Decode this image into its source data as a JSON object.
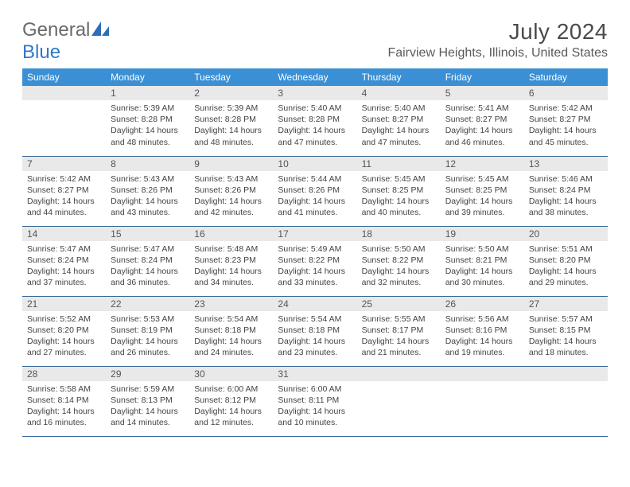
{
  "logo": {
    "word1": "General",
    "word2": "Blue"
  },
  "title": "July 2024",
  "location": "Fairview Heights, Illinois, United States",
  "colors": {
    "header_bg": "#3b8fd4",
    "header_fg": "#ffffff",
    "daynum_bg": "#e9e9e9",
    "row_border": "#3a6a9a",
    "logo_gray": "#6a6a6a",
    "logo_blue": "#3178c6"
  },
  "weekdays": [
    "Sunday",
    "Monday",
    "Tuesday",
    "Wednesday",
    "Thursday",
    "Friday",
    "Saturday"
  ],
  "weeks": [
    [
      {
        "n": "",
        "sr": "",
        "ss": "",
        "d1": "",
        "d2": ""
      },
      {
        "n": "1",
        "sr": "Sunrise: 5:39 AM",
        "ss": "Sunset: 8:28 PM",
        "d1": "Daylight: 14 hours",
        "d2": "and 48 minutes."
      },
      {
        "n": "2",
        "sr": "Sunrise: 5:39 AM",
        "ss": "Sunset: 8:28 PM",
        "d1": "Daylight: 14 hours",
        "d2": "and 48 minutes."
      },
      {
        "n": "3",
        "sr": "Sunrise: 5:40 AM",
        "ss": "Sunset: 8:28 PM",
        "d1": "Daylight: 14 hours",
        "d2": "and 47 minutes."
      },
      {
        "n": "4",
        "sr": "Sunrise: 5:40 AM",
        "ss": "Sunset: 8:27 PM",
        "d1": "Daylight: 14 hours",
        "d2": "and 47 minutes."
      },
      {
        "n": "5",
        "sr": "Sunrise: 5:41 AM",
        "ss": "Sunset: 8:27 PM",
        "d1": "Daylight: 14 hours",
        "d2": "and 46 minutes."
      },
      {
        "n": "6",
        "sr": "Sunrise: 5:42 AM",
        "ss": "Sunset: 8:27 PM",
        "d1": "Daylight: 14 hours",
        "d2": "and 45 minutes."
      }
    ],
    [
      {
        "n": "7",
        "sr": "Sunrise: 5:42 AM",
        "ss": "Sunset: 8:27 PM",
        "d1": "Daylight: 14 hours",
        "d2": "and 44 minutes."
      },
      {
        "n": "8",
        "sr": "Sunrise: 5:43 AM",
        "ss": "Sunset: 8:26 PM",
        "d1": "Daylight: 14 hours",
        "d2": "and 43 minutes."
      },
      {
        "n": "9",
        "sr": "Sunrise: 5:43 AM",
        "ss": "Sunset: 8:26 PM",
        "d1": "Daylight: 14 hours",
        "d2": "and 42 minutes."
      },
      {
        "n": "10",
        "sr": "Sunrise: 5:44 AM",
        "ss": "Sunset: 8:26 PM",
        "d1": "Daylight: 14 hours",
        "d2": "and 41 minutes."
      },
      {
        "n": "11",
        "sr": "Sunrise: 5:45 AM",
        "ss": "Sunset: 8:25 PM",
        "d1": "Daylight: 14 hours",
        "d2": "and 40 minutes."
      },
      {
        "n": "12",
        "sr": "Sunrise: 5:45 AM",
        "ss": "Sunset: 8:25 PM",
        "d1": "Daylight: 14 hours",
        "d2": "and 39 minutes."
      },
      {
        "n": "13",
        "sr": "Sunrise: 5:46 AM",
        "ss": "Sunset: 8:24 PM",
        "d1": "Daylight: 14 hours",
        "d2": "and 38 minutes."
      }
    ],
    [
      {
        "n": "14",
        "sr": "Sunrise: 5:47 AM",
        "ss": "Sunset: 8:24 PM",
        "d1": "Daylight: 14 hours",
        "d2": "and 37 minutes."
      },
      {
        "n": "15",
        "sr": "Sunrise: 5:47 AM",
        "ss": "Sunset: 8:24 PM",
        "d1": "Daylight: 14 hours",
        "d2": "and 36 minutes."
      },
      {
        "n": "16",
        "sr": "Sunrise: 5:48 AM",
        "ss": "Sunset: 8:23 PM",
        "d1": "Daylight: 14 hours",
        "d2": "and 34 minutes."
      },
      {
        "n": "17",
        "sr": "Sunrise: 5:49 AM",
        "ss": "Sunset: 8:22 PM",
        "d1": "Daylight: 14 hours",
        "d2": "and 33 minutes."
      },
      {
        "n": "18",
        "sr": "Sunrise: 5:50 AM",
        "ss": "Sunset: 8:22 PM",
        "d1": "Daylight: 14 hours",
        "d2": "and 32 minutes."
      },
      {
        "n": "19",
        "sr": "Sunrise: 5:50 AM",
        "ss": "Sunset: 8:21 PM",
        "d1": "Daylight: 14 hours",
        "d2": "and 30 minutes."
      },
      {
        "n": "20",
        "sr": "Sunrise: 5:51 AM",
        "ss": "Sunset: 8:20 PM",
        "d1": "Daylight: 14 hours",
        "d2": "and 29 minutes."
      }
    ],
    [
      {
        "n": "21",
        "sr": "Sunrise: 5:52 AM",
        "ss": "Sunset: 8:20 PM",
        "d1": "Daylight: 14 hours",
        "d2": "and 27 minutes."
      },
      {
        "n": "22",
        "sr": "Sunrise: 5:53 AM",
        "ss": "Sunset: 8:19 PM",
        "d1": "Daylight: 14 hours",
        "d2": "and 26 minutes."
      },
      {
        "n": "23",
        "sr": "Sunrise: 5:54 AM",
        "ss": "Sunset: 8:18 PM",
        "d1": "Daylight: 14 hours",
        "d2": "and 24 minutes."
      },
      {
        "n": "24",
        "sr": "Sunrise: 5:54 AM",
        "ss": "Sunset: 8:18 PM",
        "d1": "Daylight: 14 hours",
        "d2": "and 23 minutes."
      },
      {
        "n": "25",
        "sr": "Sunrise: 5:55 AM",
        "ss": "Sunset: 8:17 PM",
        "d1": "Daylight: 14 hours",
        "d2": "and 21 minutes."
      },
      {
        "n": "26",
        "sr": "Sunrise: 5:56 AM",
        "ss": "Sunset: 8:16 PM",
        "d1": "Daylight: 14 hours",
        "d2": "and 19 minutes."
      },
      {
        "n": "27",
        "sr": "Sunrise: 5:57 AM",
        "ss": "Sunset: 8:15 PM",
        "d1": "Daylight: 14 hours",
        "d2": "and 18 minutes."
      }
    ],
    [
      {
        "n": "28",
        "sr": "Sunrise: 5:58 AM",
        "ss": "Sunset: 8:14 PM",
        "d1": "Daylight: 14 hours",
        "d2": "and 16 minutes."
      },
      {
        "n": "29",
        "sr": "Sunrise: 5:59 AM",
        "ss": "Sunset: 8:13 PM",
        "d1": "Daylight: 14 hours",
        "d2": "and 14 minutes."
      },
      {
        "n": "30",
        "sr": "Sunrise: 6:00 AM",
        "ss": "Sunset: 8:12 PM",
        "d1": "Daylight: 14 hours",
        "d2": "and 12 minutes."
      },
      {
        "n": "31",
        "sr": "Sunrise: 6:00 AM",
        "ss": "Sunset: 8:11 PM",
        "d1": "Daylight: 14 hours",
        "d2": "and 10 minutes."
      },
      {
        "n": "",
        "sr": "",
        "ss": "",
        "d1": "",
        "d2": ""
      },
      {
        "n": "",
        "sr": "",
        "ss": "",
        "d1": "",
        "d2": ""
      },
      {
        "n": "",
        "sr": "",
        "ss": "",
        "d1": "",
        "d2": ""
      }
    ]
  ]
}
